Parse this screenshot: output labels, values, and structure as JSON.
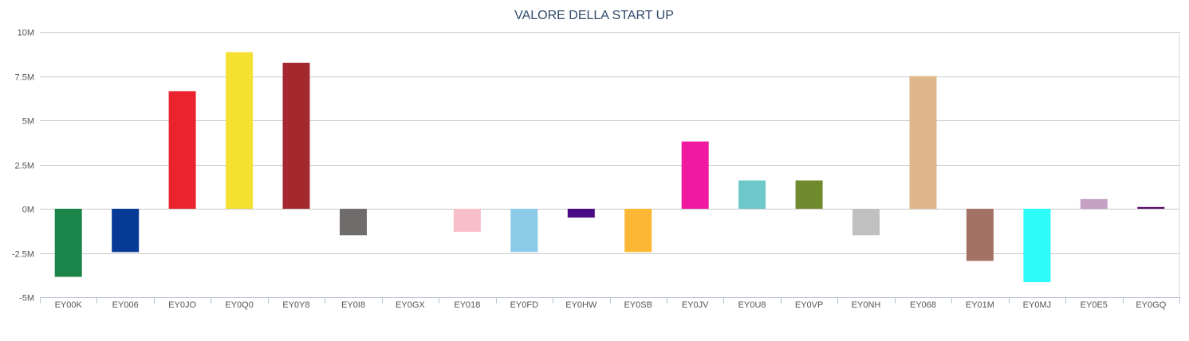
{
  "chart_data": {
    "type": "bar",
    "title": "VALORE DELLA START UP",
    "xlabel": "",
    "ylabel": "",
    "ylim": [
      -5000000,
      10000000
    ],
    "y_ticks": [
      {
        "value": 10000000,
        "label": "10M"
      },
      {
        "value": 7500000,
        "label": "7.5M"
      },
      {
        "value": 5000000,
        "label": "5M"
      },
      {
        "value": 2500000,
        "label": "2.5M"
      },
      {
        "value": 0,
        "label": "0M"
      },
      {
        "value": -2500000,
        "label": "-2.5M"
      },
      {
        "value": -5000000,
        "label": "-5M"
      }
    ],
    "grid": true,
    "legend": "none",
    "categories": [
      "EY00K",
      "EY006",
      "EY0JO",
      "EY0Q0",
      "EY0Y8",
      "EY0I8",
      "EY0GX",
      "EY018",
      "EY0FD",
      "EY0HW",
      "EY0SB",
      "EY0JV",
      "EY0U8",
      "EY0VP",
      "EY0NH",
      "EY068",
      "EY01M",
      "EY0MJ",
      "EY0E5",
      "EY0GQ"
    ],
    "values": [
      -3850000,
      -2450000,
      6650000,
      8850000,
      8250000,
      -1500000,
      0,
      -1300000,
      -2450000,
      -500000,
      -2450000,
      3800000,
      1600000,
      1600000,
      -1500000,
      7500000,
      -2950000,
      -4150000,
      550000,
      100000
    ],
    "colors": [
      "#1b8448",
      "#063a96",
      "#ea232e",
      "#f6e031",
      "#a4292e",
      "#716c6c",
      "#ffffff",
      "#f8bfca",
      "#8ccbe8",
      "#4a0c84",
      "#fcb835",
      "#ef1aa0",
      "#6ec8ca",
      "#708b2d",
      "#c0c0c0",
      "#dfb78a",
      "#a47165",
      "#2cfdfb",
      "#c6a1c6",
      "#560d67"
    ]
  }
}
